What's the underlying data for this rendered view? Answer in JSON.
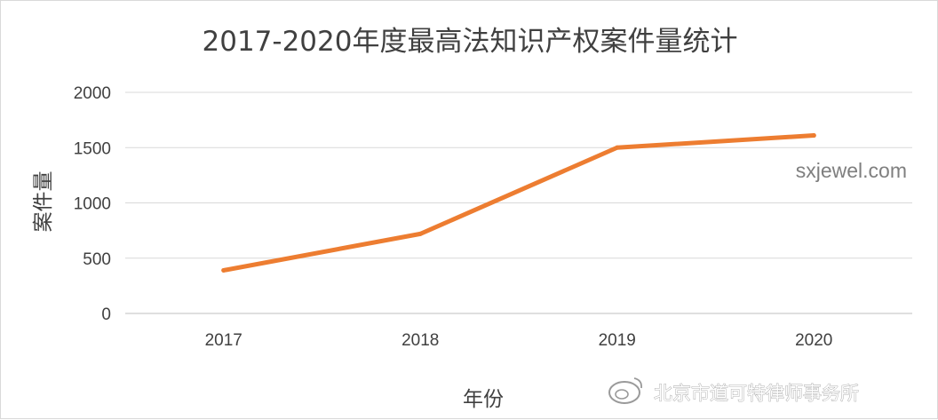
{
  "chart_data": {
    "type": "line",
    "title": "2017-2020年度最高法知识产权案件量统计",
    "xlabel": "年份",
    "ylabel": "案件量",
    "categories": [
      "2017",
      "2018",
      "2019",
      "2020"
    ],
    "series": [
      {
        "name": "案件量",
        "values": [
          390,
          720,
          1500,
          1610
        ],
        "color": "#ED7D31"
      }
    ],
    "ylim": [
      0,
      2000
    ],
    "yticks": [
      0,
      500,
      1000,
      1500,
      2000
    ],
    "grid": true,
    "legend": "none"
  },
  "watermarks": {
    "site": "sxjewel.com",
    "weibo": "北京市道可特律师事务所"
  }
}
